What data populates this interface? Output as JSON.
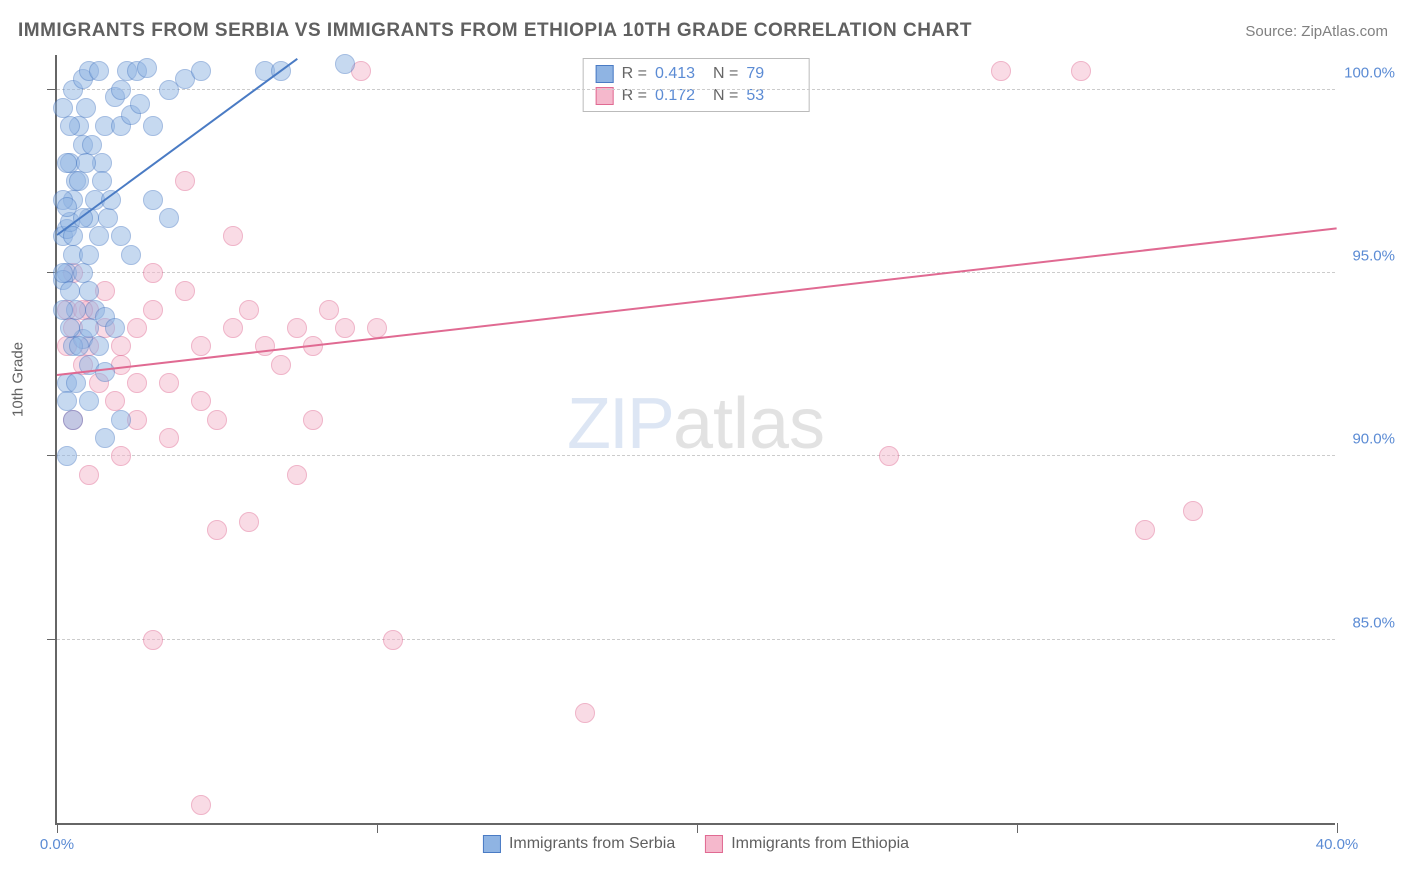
{
  "header": {
    "title": "IMMIGRANTS FROM SERBIA VS IMMIGRANTS FROM ETHIOPIA 10TH GRADE CORRELATION CHART",
    "source_prefix": "Source: ",
    "source_name": "ZipAtlas.com"
  },
  "axis": {
    "y_title": "10th Grade"
  },
  "chart": {
    "type": "scatter",
    "xlim": [
      0,
      40
    ],
    "ylim": [
      80,
      101
    ],
    "x_ticks": [
      0,
      10,
      20,
      30,
      40
    ],
    "x_tick_labels": [
      "0.0%",
      "",
      "",
      "",
      "40.0%"
    ],
    "y_ticks": [
      85,
      90,
      95,
      100
    ],
    "y_tick_labels": [
      "85.0%",
      "90.0%",
      "95.0%",
      "100.0%"
    ],
    "background_color": "#ffffff",
    "grid_color": "#cccccc",
    "axis_color": "#666666",
    "label_color": "#5b8bd4",
    "marker_radius": 10,
    "marker_opacity": 0.5,
    "series": [
      {
        "name": "Immigrants from Serbia",
        "fill": "#8fb4e3",
        "stroke": "#4a7bc4",
        "r_label": "R =",
        "r_value": "0.413",
        "n_label": "N =",
        "n_value": "79",
        "trend": {
          "x1": 0,
          "y1": 96.0,
          "x2": 7.5,
          "y2": 100.8
        },
        "points": [
          [
            0.2,
            96.0
          ],
          [
            0.3,
            96.2
          ],
          [
            0.4,
            96.4
          ],
          [
            0.5,
            95.5
          ],
          [
            0.3,
            95.0
          ],
          [
            0.2,
            94.8
          ],
          [
            0.5,
            97.0
          ],
          [
            0.6,
            97.5
          ],
          [
            0.4,
            98.0
          ],
          [
            0.8,
            98.5
          ],
          [
            0.7,
            99.0
          ],
          [
            0.9,
            99.5
          ],
          [
            1.0,
            96.5
          ],
          [
            1.2,
            97.0
          ],
          [
            1.4,
            98.0
          ],
          [
            1.5,
            99.0
          ],
          [
            1.8,
            99.8
          ],
          [
            2.0,
            100.0
          ],
          [
            2.2,
            100.5
          ],
          [
            2.5,
            100.5
          ],
          [
            2.8,
            100.6
          ],
          [
            2.0,
            99.0
          ],
          [
            2.3,
            99.3
          ],
          [
            2.6,
            99.6
          ],
          [
            1.0,
            94.5
          ],
          [
            1.2,
            94.0
          ],
          [
            1.5,
            93.8
          ],
          [
            1.8,
            93.5
          ],
          [
            0.8,
            93.2
          ],
          [
            0.5,
            93.0
          ],
          [
            0.3,
            92.0
          ],
          [
            1.0,
            92.5
          ],
          [
            1.5,
            92.3
          ],
          [
            0.2,
            95.0
          ],
          [
            0.4,
            94.5
          ],
          [
            0.6,
            94.0
          ],
          [
            3.0,
            99.0
          ],
          [
            3.5,
            100.0
          ],
          [
            4.0,
            100.3
          ],
          [
            4.5,
            100.5
          ],
          [
            3.0,
            97.0
          ],
          [
            3.5,
            96.5
          ],
          [
            0.2,
            97.0
          ],
          [
            0.3,
            98.0
          ],
          [
            0.4,
            99.0
          ],
          [
            0.2,
            99.5
          ],
          [
            0.5,
            100.0
          ],
          [
            0.8,
            100.3
          ],
          [
            1.0,
            100.5
          ],
          [
            1.3,
            100.5
          ],
          [
            0.8,
            95.0
          ],
          [
            1.0,
            95.5
          ],
          [
            1.3,
            96.0
          ],
          [
            1.6,
            96.5
          ],
          [
            0.5,
            91.0
          ],
          [
            1.0,
            91.5
          ],
          [
            1.5,
            90.5
          ],
          [
            2.0,
            91.0
          ],
          [
            0.3,
            90.0
          ],
          [
            6.5,
            100.5
          ],
          [
            7.0,
            100.5
          ],
          [
            9.0,
            100.7
          ],
          [
            0.3,
            96.8
          ],
          [
            0.5,
            96.0
          ],
          [
            0.8,
            96.5
          ],
          [
            0.7,
            97.5
          ],
          [
            0.9,
            98.0
          ],
          [
            1.1,
            98.5
          ],
          [
            1.4,
            97.5
          ],
          [
            1.7,
            97.0
          ],
          [
            2.0,
            96.0
          ],
          [
            2.3,
            95.5
          ],
          [
            0.2,
            94.0
          ],
          [
            0.4,
            93.5
          ],
          [
            0.7,
            93.0
          ],
          [
            1.0,
            93.5
          ],
          [
            1.3,
            93.0
          ],
          [
            0.3,
            91.5
          ],
          [
            0.6,
            92.0
          ]
        ]
      },
      {
        "name": "Immigrants from Ethiopia",
        "fill": "#f5b8cc",
        "stroke": "#e06a92",
        "r_label": "R =",
        "r_value": "0.172",
        "n_label": "N =",
        "n_value": "53",
        "trend": {
          "x1": 0,
          "y1": 92.2,
          "x2": 40,
          "y2": 96.2
        },
        "points": [
          [
            0.5,
            95.0
          ],
          [
            1.0,
            94.0
          ],
          [
            1.5,
            94.5
          ],
          [
            2.0,
            93.0
          ],
          [
            2.5,
            93.5
          ],
          [
            3.0,
            94.0
          ],
          [
            3.5,
            92.0
          ],
          [
            4.0,
            97.5
          ],
          [
            4.5,
            93.0
          ],
          [
            5.0,
            91.0
          ],
          [
            5.5,
            93.5
          ],
          [
            6.0,
            94.0
          ],
          [
            6.5,
            93.0
          ],
          [
            7.0,
            92.5
          ],
          [
            7.5,
            93.5
          ],
          [
            8.0,
            93.0
          ],
          [
            8.5,
            94.0
          ],
          [
            9.0,
            93.5
          ],
          [
            9.5,
            100.5
          ],
          [
            10.0,
            93.5
          ],
          [
            4.5,
            91.5
          ],
          [
            5.0,
            88.0
          ],
          [
            6.0,
            88.2
          ],
          [
            7.5,
            89.5
          ],
          [
            8.0,
            91.0
          ],
          [
            3.0,
            85.0
          ],
          [
            4.5,
            80.5
          ],
          [
            10.5,
            85.0
          ],
          [
            16.5,
            83.0
          ],
          [
            1.0,
            89.5
          ],
          [
            2.0,
            90.0
          ],
          [
            2.5,
            91.0
          ],
          [
            3.5,
            90.5
          ],
          [
            0.3,
            93.0
          ],
          [
            0.8,
            92.5
          ],
          [
            1.3,
            92.0
          ],
          [
            1.8,
            91.5
          ],
          [
            0.5,
            91.0
          ],
          [
            5.5,
            96.0
          ],
          [
            4.0,
            94.5
          ],
          [
            3.0,
            95.0
          ],
          [
            29.5,
            100.5
          ],
          [
            32.0,
            100.5
          ],
          [
            34.0,
            88.0
          ],
          [
            35.5,
            88.5
          ],
          [
            26.0,
            90.0
          ],
          [
            0.3,
            94.0
          ],
          [
            0.5,
            93.5
          ],
          [
            0.8,
            94.0
          ],
          [
            1.0,
            93.0
          ],
          [
            1.5,
            93.5
          ],
          [
            2.0,
            92.5
          ],
          [
            2.5,
            92.0
          ]
        ]
      }
    ]
  },
  "watermark": {
    "part1": "ZIP",
    "part2": "atlas"
  },
  "legend": {
    "series1": "Immigrants from Serbia",
    "series2": "Immigrants from Ethiopia"
  }
}
